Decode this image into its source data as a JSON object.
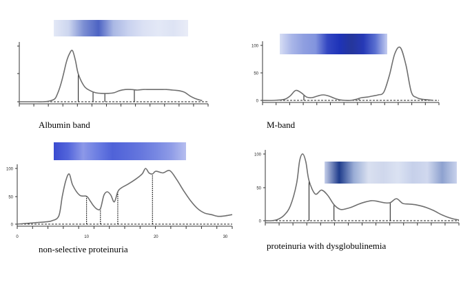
{
  "figure": {
    "captions": [
      "Albumin band",
      "M-band",
      "non-selective proteinuria",
      "proteinuria with dysglobulinemia"
    ]
  },
  "chart_data": [
    {
      "type": "line",
      "title": "",
      "caption": "Albumin band",
      "xlabel": "",
      "ylabel": "",
      "xlim": [
        0,
        32
      ],
      "ylim": [
        0,
        100
      ],
      "y_tick_labels": [],
      "x_tick_labels": [],
      "x": [
        0,
        2,
        3,
        4,
        5,
        6,
        6.5,
        7,
        7.5,
        8,
        8.5,
        9,
        9.5,
        10,
        11,
        12,
        13,
        14,
        15,
        16,
        17,
        18,
        19,
        20,
        21,
        22,
        23,
        24,
        25,
        26,
        27,
        28,
        29,
        30,
        31
      ],
      "y": [
        0,
        0,
        0,
        0,
        1,
        5,
        15,
        30,
        50,
        72,
        86,
        92,
        75,
        50,
        28,
        20,
        16,
        15,
        15,
        16,
        20,
        22,
        22,
        21,
        22,
        22,
        22,
        22,
        22,
        21,
        20,
        17,
        10,
        5,
        2
      ],
      "segment_marks_x": [
        10,
        12.5,
        14.5,
        19.5
      ],
      "strip": {
        "colors": [
          "#e3e8f6",
          "#cdd6ef",
          "#7c8fd3",
          "#4d63c3",
          "#aab8e4",
          "#c9d2ef",
          "#dbe1f4",
          "#e3e8f6",
          "#dde3f4",
          "#e9ecf7"
        ]
      }
    },
    {
      "type": "line",
      "title": "",
      "caption": "M-band",
      "xlabel": "",
      "ylabel": "",
      "xlim": [
        0,
        32
      ],
      "ylim": [
        0,
        100
      ],
      "y_tick_labels": [
        "100",
        "50",
        "0"
      ],
      "x_tick_labels": [],
      "x": [
        0,
        2,
        4,
        5,
        6,
        7,
        8,
        9,
        10,
        11,
        12,
        13,
        14,
        15,
        16,
        17,
        18,
        19,
        20,
        21,
        22,
        23,
        24,
        25,
        26,
        27,
        28,
        29,
        30,
        31
      ],
      "y": [
        0,
        0,
        2,
        8,
        18,
        14,
        6,
        5,
        8,
        10,
        8,
        4,
        1,
        0,
        0,
        2,
        5,
        6,
        8,
        10,
        15,
        45,
        85,
        96,
        65,
        15,
        5,
        2,
        1,
        0
      ],
      "segment_marks_x": [
        7.5,
        14.5,
        17.5
      ],
      "strip": {
        "colors": [
          "#d6ddf4",
          "#a9b6e8",
          "#8f9fe0",
          "#8294de",
          "#3347c2",
          "#1e33b8",
          "#25369b",
          "#2639b6",
          "#5a6fd0",
          "#c4cdf0"
        ]
      }
    },
    {
      "type": "line",
      "title": "",
      "caption": "non-selective proteinuria",
      "xlabel": "",
      "ylabel": "",
      "xlim": [
        0,
        31
      ],
      "ylim": [
        0,
        100
      ],
      "y_tick_labels": [
        "100",
        "50",
        "0"
      ],
      "x_tick_labels": [
        "0",
        "10",
        "20",
        "30"
      ],
      "x": [
        0,
        2,
        3,
        4,
        5,
        6,
        6.5,
        7,
        7.5,
        8,
        9,
        10,
        10.5,
        11,
        11.5,
        12,
        12.5,
        13,
        13.5,
        14,
        14.5,
        15,
        16,
        17,
        18,
        18.5,
        19,
        19.5,
        20,
        21,
        22,
        23,
        24,
        25,
        26,
        27,
        28,
        29,
        30,
        31
      ],
      "y": [
        0,
        2,
        3,
        4,
        6,
        15,
        50,
        78,
        90,
        70,
        52,
        50,
        42,
        33,
        27,
        28,
        52,
        58,
        52,
        40,
        58,
        65,
        72,
        80,
        90,
        100,
        92,
        90,
        95,
        92,
        96,
        80,
        60,
        42,
        28,
        20,
        17,
        14,
        15,
        17
      ],
      "segment_marks_x": [
        10,
        12,
        14.5,
        19.5
      ],
      "strip": {
        "colors": [
          "#3a4bd0",
          "#5466db",
          "#8c98e8",
          "#6b7de2",
          "#4f62d8",
          "#5a6cdb",
          "#6778de",
          "#7888e2",
          "#8f9ce7",
          "#b6beef"
        ]
      }
    },
    {
      "type": "line",
      "title": "",
      "caption": "proteinuria with dysglobulinemia",
      "xlabel": "",
      "ylabel": "",
      "xlim": [
        0,
        31
      ],
      "ylim": [
        0,
        100
      ],
      "y_tick_labels": [
        "100",
        "50",
        "0"
      ],
      "x_tick_labels": [],
      "x": [
        0,
        1,
        2,
        3,
        4,
        5,
        5.5,
        6,
        6.5,
        7,
        8,
        9,
        10,
        11,
        12,
        13,
        14,
        15,
        16,
        17,
        18,
        19,
        20,
        21,
        22,
        23,
        24,
        25,
        26,
        27,
        28,
        29,
        30,
        31
      ],
      "y": [
        0,
        0,
        2,
        8,
        22,
        55,
        90,
        100,
        88,
        60,
        40,
        46,
        38,
        24,
        17,
        18,
        21,
        25,
        28,
        30,
        29,
        27,
        27,
        33,
        26,
        25,
        24,
        22,
        19,
        15,
        10,
        6,
        3,
        1
      ],
      "segment_marks_x": [
        7,
        11,
        20
      ],
      "strip": {
        "colors": [
          "#c7d0ea",
          "#1f3c8c",
          "#9aadd6",
          "#d9e0f0",
          "#cfd7ec",
          "#dbe2f2",
          "#c6d0ea",
          "#d0d8ee",
          "#8ea2cf",
          "#c9d2ec"
        ]
      }
    }
  ]
}
